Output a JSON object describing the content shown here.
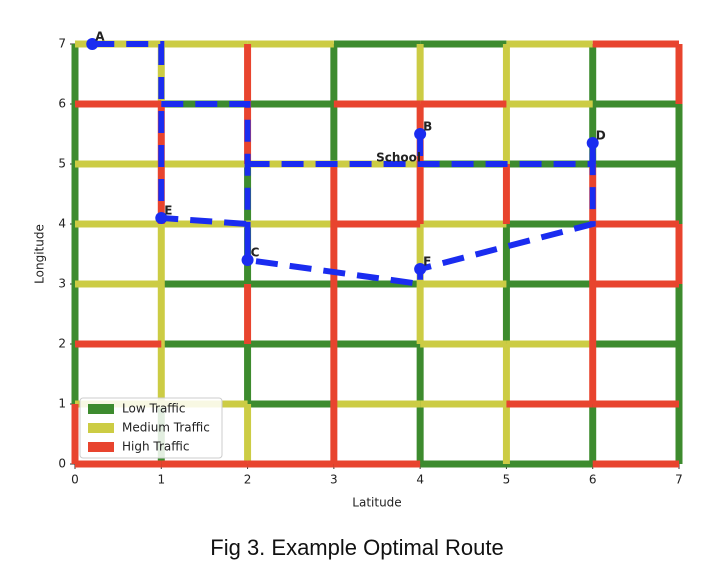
{
  "chart_data": {
    "type": "grid-route",
    "caption": "Fig 3. Example Optimal Route",
    "x_label": "Latitude",
    "y_label": "Longitude",
    "xlim": [
      0,
      7
    ],
    "ylim": [
      0,
      7
    ],
    "xticks": [
      0,
      1,
      2,
      3,
      4,
      5,
      6,
      7
    ],
    "yticks": [
      0,
      1,
      2,
      3,
      4,
      5,
      6,
      7
    ],
    "legend": "lower left",
    "series": [
      {
        "name": "Low Traffic",
        "color": "#3d8b2e",
        "segments": [
          [
            3,
            7,
            4,
            7
          ],
          [
            4,
            7,
            5,
            7
          ],
          [
            1,
            6,
            2,
            6
          ],
          [
            2,
            6,
            3,
            6
          ],
          [
            6,
            6,
            7,
            6
          ],
          [
            4,
            5,
            5,
            5
          ],
          [
            5,
            5,
            6,
            5
          ],
          [
            6,
            5,
            7,
            5
          ],
          [
            5,
            4,
            6,
            4
          ],
          [
            1,
            3,
            2,
            3
          ],
          [
            2,
            3,
            3,
            3
          ],
          [
            3,
            3,
            4,
            3
          ],
          [
            5,
            3,
            6,
            3
          ],
          [
            1,
            2,
            2,
            2
          ],
          [
            2,
            2,
            3,
            2
          ],
          [
            3,
            2,
            4,
            2
          ],
          [
            6,
            2,
            7,
            2
          ],
          [
            2,
            1,
            3,
            1
          ],
          [
            4,
            0,
            5,
            0
          ],
          [
            5,
            0,
            6,
            0
          ],
          [
            0,
            1,
            0,
            2
          ],
          [
            0,
            2,
            0,
            3
          ],
          [
            0,
            3,
            0,
            4
          ],
          [
            0,
            4,
            0,
            5
          ],
          [
            0,
            5,
            0,
            6
          ],
          [
            0,
            6,
            0,
            7
          ],
          [
            1,
            0,
            1,
            1
          ],
          [
            2,
            1,
            2,
            2
          ],
          [
            2,
            3,
            2,
            4
          ],
          [
            2,
            4,
            2,
            5
          ],
          [
            3,
            5,
            3,
            6
          ],
          [
            3,
            6,
            3,
            7
          ],
          [
            4,
            0,
            4,
            1
          ],
          [
            4,
            1,
            4,
            2
          ],
          [
            5,
            2,
            5,
            3
          ],
          [
            5,
            3,
            5,
            4
          ],
          [
            6,
            0,
            6,
            1
          ],
          [
            6,
            5,
            6,
            6
          ],
          [
            6,
            6,
            6,
            7
          ],
          [
            7,
            0,
            7,
            1
          ],
          [
            7,
            1,
            7,
            2
          ],
          [
            7,
            2,
            7,
            3
          ],
          [
            7,
            4,
            7,
            5
          ],
          [
            7,
            5,
            7,
            6
          ]
        ]
      },
      {
        "name": "Medium Traffic",
        "color": "#cccc44",
        "segments": [
          [
            0,
            7,
            1,
            7
          ],
          [
            1,
            7,
            2,
            7
          ],
          [
            2,
            7,
            3,
            7
          ],
          [
            5,
            7,
            6,
            7
          ],
          [
            5,
            6,
            6,
            6
          ],
          [
            0,
            5,
            1,
            5
          ],
          [
            1,
            5,
            2,
            5
          ],
          [
            2,
            5,
            3,
            5
          ],
          [
            3,
            5,
            4,
            5
          ],
          [
            0,
            4,
            1,
            4
          ],
          [
            1,
            4,
            2,
            4
          ],
          [
            2,
            4,
            3,
            4
          ],
          [
            4,
            4,
            5,
            4
          ],
          [
            0,
            3,
            1,
            3
          ],
          [
            4,
            3,
            5,
            3
          ],
          [
            4,
            2,
            5,
            2
          ],
          [
            5,
            2,
            6,
            2
          ],
          [
            0,
            1,
            1,
            1
          ],
          [
            1,
            1,
            2,
            1
          ],
          [
            3,
            1,
            4,
            1
          ],
          [
            4,
            1,
            5,
            1
          ],
          [
            1,
            1,
            1,
            2
          ],
          [
            1,
            2,
            1,
            3
          ],
          [
            1,
            3,
            1,
            4
          ],
          [
            1,
            6,
            1,
            7
          ],
          [
            2,
            0,
            2,
            1
          ],
          [
            4,
            2,
            4,
            3
          ],
          [
            4,
            3,
            4,
            4
          ],
          [
            4,
            6,
            4,
            7
          ],
          [
            5,
            0,
            5,
            1
          ],
          [
            5,
            1,
            5,
            2
          ],
          [
            5,
            5,
            5,
            6
          ],
          [
            5,
            6,
            5,
            7
          ]
        ]
      },
      {
        "name": "High Traffic",
        "color": "#e8442e",
        "segments": [
          [
            6,
            7,
            7,
            7
          ],
          [
            0,
            6,
            1,
            6
          ],
          [
            3,
            6,
            4,
            6
          ],
          [
            4,
            6,
            5,
            6
          ],
          [
            3,
            4,
            4,
            4
          ],
          [
            6,
            4,
            7,
            4
          ],
          [
            6,
            3,
            7,
            3
          ],
          [
            0,
            2,
            1,
            2
          ],
          [
            5,
            1,
            6,
            1
          ],
          [
            6,
            1,
            7,
            1
          ],
          [
            0,
            0,
            1,
            0
          ],
          [
            1,
            0,
            2,
            0
          ],
          [
            2,
            0,
            3,
            0
          ],
          [
            3,
            0,
            4,
            0
          ],
          [
            6,
            0,
            7,
            0
          ],
          [
            0,
            0,
            0,
            1
          ],
          [
            1,
            4,
            1,
            5
          ],
          [
            1,
            5,
            1,
            6
          ],
          [
            2,
            2,
            2,
            3
          ],
          [
            2,
            5,
            2,
            6
          ],
          [
            2,
            6,
            2,
            7
          ],
          [
            3,
            0,
            3,
            1
          ],
          [
            3,
            1,
            3,
            2
          ],
          [
            3,
            2,
            3,
            3
          ],
          [
            3,
            3,
            3,
            4
          ],
          [
            3,
            4,
            3,
            5
          ],
          [
            4,
            4,
            4,
            5
          ],
          [
            4,
            5,
            4,
            6
          ],
          [
            5,
            4,
            5,
            5
          ],
          [
            6,
            1,
            6,
            2
          ],
          [
            6,
            2,
            6,
            3
          ],
          [
            6,
            3,
            6,
            4
          ],
          [
            6,
            4,
            6,
            5
          ],
          [
            7,
            3,
            7,
            4
          ],
          [
            7,
            6,
            7,
            7
          ]
        ]
      }
    ],
    "route": {
      "color": "#1a2cf0",
      "x": [
        0.2,
        1,
        1,
        2,
        2,
        4,
        4,
        6,
        6,
        null,
        1,
        2,
        2,
        null,
        2,
        6,
        6,
        null,
        4,
        4
      ],
      "y": [
        7,
        7,
        4.1,
        4,
        3.4,
        3,
        3.25,
        4,
        5.35,
        null,
        6,
        6,
        3.4,
        null,
        5,
        5,
        5.35,
        null,
        5.5,
        5
      ]
    },
    "points": [
      {
        "label": "A",
        "x": 0.2,
        "y": 7
      },
      {
        "label": "B",
        "x": 4,
        "y": 5.5
      },
      {
        "label": "C",
        "x": 2,
        "y": 3.4
      },
      {
        "label": "D",
        "x": 6,
        "y": 5.35
      },
      {
        "label": "E",
        "x": 1,
        "y": 4.1
      },
      {
        "label": "F",
        "x": 4,
        "y": 3.25
      }
    ],
    "annotations": [
      {
        "text": "School",
        "x": 3.75,
        "y": 5.1
      }
    ]
  }
}
